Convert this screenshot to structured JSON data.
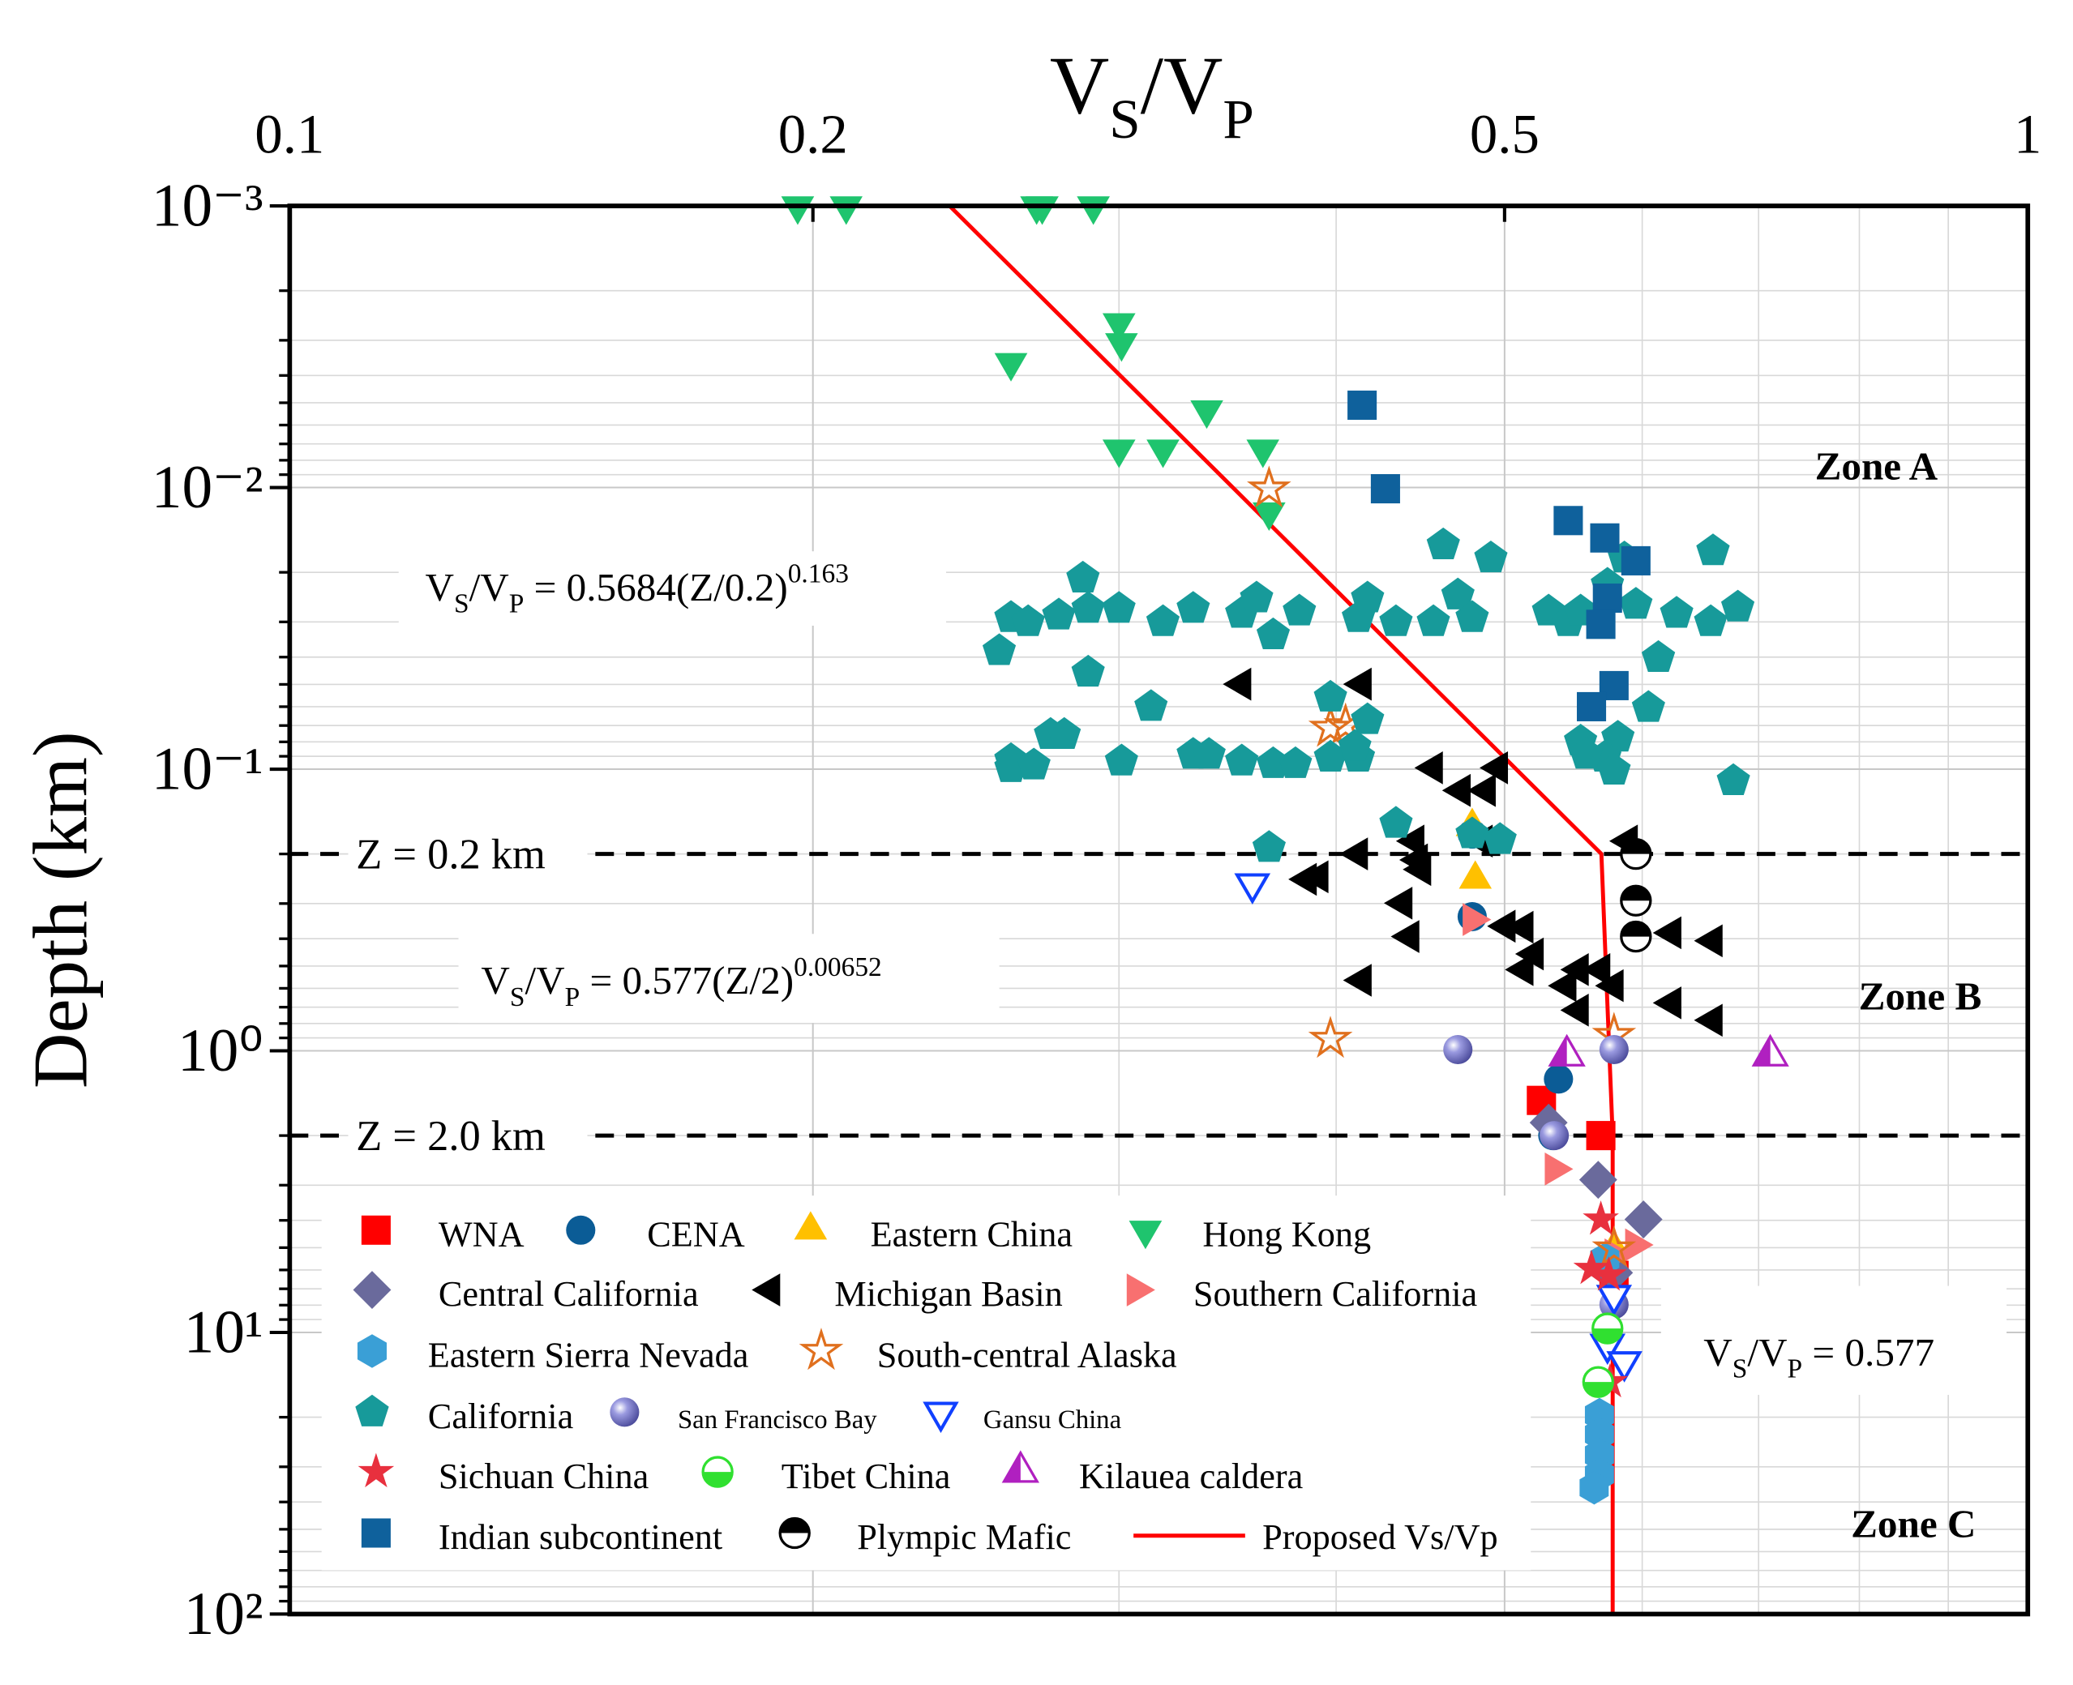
{
  "chart_data": {
    "type": "scatter",
    "x_label": [
      "V",
      "S",
      "/V",
      "P"
    ],
    "y_label": "Depth (km)",
    "xlim": [
      0.1,
      1
    ],
    "xticks": [
      0.1,
      0.2,
      0.5,
      1
    ],
    "x_log": true,
    "ylim": [
      0.001,
      100
    ],
    "y_log": true,
    "y_inverted": true,
    "yticks": [
      {
        "value": 0.001,
        "label": "10⁻³"
      },
      {
        "value": 0.01,
        "label": "10⁻²"
      },
      {
        "value": 0.1,
        "label": "10⁻¹"
      },
      {
        "value": 1,
        "label": "10⁰"
      },
      {
        "value": 10,
        "label": "10¹"
      },
      {
        "value": 100,
        "label": "10²"
      }
    ],
    "grid": true,
    "minor_grid": true,
    "legend": "lower left",
    "hlines": [
      {
        "y": 0.2,
        "label": "Z = 0.2 km"
      },
      {
        "y": 2,
        "label": "Z = 2.0 km"
      }
    ],
    "zones": [
      "Zone A",
      "Zone B",
      "Zone C"
    ],
    "equations": [
      [
        "V",
        "S",
        "/V",
        "P",
        " = 0.5684(Z/0.2)",
        "0.163"
      ],
      [
        "V",
        "S",
        "/V",
        "P",
        " = 0.577(Z/2)",
        "0.00652"
      ],
      [
        "V",
        "S",
        "/V",
        "P",
        " = 0.577"
      ]
    ],
    "series": [
      {
        "name": "WNA",
        "marker": "square",
        "color": "#ff0000",
        "x": [
          0.525,
          0.568,
          0.578
        ],
        "y": [
          1.5,
          2.0,
          6.27
        ]
      },
      {
        "name": "CENA",
        "marker": "circle",
        "color": "#0b5c96",
        "x": [
          0.479,
          0.479,
          0.537,
          0.533
        ],
        "y": [
          0.17,
          0.334,
          1.26,
          2.0
        ]
      },
      {
        "name": "Eastern China",
        "marker": "triangle-up",
        "color": "#ffc000",
        "x": [
          0.479,
          0.481,
          0.578
        ],
        "y": [
          0.16,
          0.246,
          5.04
        ]
      },
      {
        "name": "Hong Kong",
        "marker": "triangle-down",
        "color": "#1fc46e",
        "x": [
          0.196,
          0.209,
          0.269,
          0.271,
          0.29,
          0.3,
          0.301,
          0.26,
          0.337,
          0.3,
          0.318,
          0.363,
          0.366
        ],
        "y": [
          0.001,
          0.001,
          0.001,
          0.001,
          0.001,
          0.0026,
          0.00306,
          0.0036,
          0.0053,
          0.0073,
          0.0073,
          0.0073,
          0.0122
        ]
      },
      {
        "name": "Central California",
        "marker": "diamond",
        "color": "#6a6a9c",
        "x": [
          0.53,
          0.566,
          0.601,
          0.578
        ],
        "y": [
          1.8,
          2.87,
          3.97,
          6.14
        ]
      },
      {
        "name": "Michigan Basin",
        "marker": "triangle-left",
        "color": "#000000",
        "x": [
          0.353,
          0.414,
          0.455,
          0.472,
          0.496,
          0.488,
          0.486,
          0.589,
          0.444,
          0.412,
          0.391,
          0.385,
          0.446,
          0.448,
          0.437,
          0.441,
          0.501,
          0.513,
          0.52,
          0.513,
          0.552,
          0.568,
          0.543,
          0.578,
          0.624,
          0.659,
          0.624,
          0.659,
          0.414,
          0.552
        ],
        "y": [
          0.0499,
          0.0499,
          0.0989,
          0.119,
          0.0989,
          0.119,
          0.18,
          0.18,
          0.18,
          0.2,
          0.241,
          0.246,
          0.21,
          0.227,
          0.299,
          0.393,
          0.361,
          0.364,
          0.453,
          0.515,
          0.515,
          0.515,
          0.587,
          0.587,
          0.381,
          0.407,
          0.676,
          0.779,
          0.562,
          0.717
        ]
      },
      {
        "name": "Southern California",
        "marker": "triangle-right",
        "color": "#f87070",
        "x": [
          0.479,
          0.534,
          0.594,
          0.578
        ],
        "y": [
          0.342,
          2.63,
          4.89,
          5.3
        ]
      },
      {
        "name": "Eastern Sierra Nevada",
        "marker": "hexagon",
        "color": "#3a9fd6",
        "x": [
          0.571,
          0.567,
          0.567,
          0.567,
          0.567,
          0.563
        ],
        "y": [
          5.5,
          19.6,
          23,
          27.2,
          32,
          35.6
        ]
      },
      {
        "name": "South-central Alaska",
        "marker": "star-open",
        "color": "#e0701e",
        "x": [
          0.366,
          0.397,
          0.405,
          0.397,
          0.578,
          0.578
        ],
        "y": [
          0.0101,
          0.0714,
          0.07,
          0.908,
          0.88,
          5.04
        ]
      },
      {
        "name": "California",
        "marker": "pentagon",
        "color": "#179a9a",
        "x": [
          0.26,
          0.266,
          0.277,
          0.286,
          0.288,
          0.3,
          0.318,
          0.331,
          0.353,
          0.36,
          0.368,
          0.381,
          0.412,
          0.417,
          0.433,
          0.455,
          0.47,
          0.479,
          0.491,
          0.461,
          0.53,
          0.544,
          0.553,
          0.573,
          0.595,
          0.628,
          0.657,
          0.659,
          0.681,
          0.613,
          0.586,
          0.256,
          0.288,
          0.313,
          0.397,
          0.417,
          0.331,
          0.338,
          0.353,
          0.368,
          0.379,
          0.397,
          0.412,
          0.41,
          0.301,
          0.26,
          0.26,
          0.268,
          0.274,
          0.279,
          0.433,
          0.366,
          0.479,
          0.497,
          0.553,
          0.581,
          0.571,
          0.605,
          0.677,
          0.578,
          0.557
        ],
        "y": [
          0.029,
          0.03,
          0.0284,
          0.021,
          0.0269,
          0.0269,
          0.03,
          0.0269,
          0.028,
          0.0247,
          0.0334,
          0.0275,
          0.029,
          0.0247,
          0.03,
          0.03,
          0.0241,
          0.029,
          0.0178,
          0.016,
          0.0275,
          0.03,
          0.0275,
          0.0221,
          0.026,
          0.028,
          0.03,
          0.0168,
          0.0266,
          0.0402,
          0.0178,
          0.038,
          0.0453,
          0.06,
          0.0556,
          0.0668,
          0.0887,
          0.0887,
          0.0937,
          0.0957,
          0.0957,
          0.0908,
          0.0908,
          0.0832,
          0.0937,
          0.0927,
          0.0989,
          0.0968,
          0.0754,
          0.0754,
          0.156,
          0.19,
          0.17,
          0.178,
          0.0796,
          0.0771,
          0.0908,
          0.0605,
          0.11,
          0.101,
          0.0887
        ]
      },
      {
        "name": "San Francisco Bay",
        "marker": "sphere",
        "color": "#7070c8",
        "x": [
          0.47,
          0.578,
          0.534,
          0.578
        ],
        "y": [
          0.99,
          0.99,
          2.0,
          7.96
        ]
      },
      {
        "name": "Gansu China",
        "marker": "triangle-down-open",
        "color": "#1040ff",
        "x": [
          0.358,
          0.578,
          0.573,
          0.586
        ],
        "y": [
          0.255,
          7.38,
          11.0,
          12.7
        ]
      },
      {
        "name": "Sichuan China",
        "marker": "star",
        "color": "#e8303e",
        "x": [
          0.568,
          0.561,
          0.574,
          0.575
        ],
        "y": [
          3.97,
          5.94,
          6.27,
          15.0
        ]
      },
      {
        "name": "Tibet China",
        "marker": "half-circle",
        "color": "#30e030",
        "x": [
          0.573,
          0.566
        ],
        "y": [
          9.68,
          15.0
        ]
      },
      {
        "name": "Kilauea caldera",
        "marker": "half-triangle",
        "color": "#b020c0",
        "x": [
          0.543,
          0.711
        ],
        "y": [
          1.04,
          1.04
        ]
      },
      {
        "name": "Indian subcontinent",
        "marker": "square",
        "color": "#0f619c",
        "x": [
          0.414,
          0.427,
          0.544,
          0.571,
          0.595,
          0.573,
          0.568,
          0.578,
          0.561
        ],
        "y": [
          0.0051,
          0.0101,
          0.0131,
          0.0151,
          0.0182,
          0.0247,
          0.0306,
          0.0505,
          0.06
        ]
      },
      {
        "name": "Plympic Mafic",
        "marker": "half-circle-top",
        "color": "#000000",
        "x": [
          0.595,
          0.595,
          0.595
        ],
        "y": [
          0.2,
          0.293,
          0.393
        ]
      },
      {
        "name": "Proposed Vs/Vp",
        "type": "line",
        "color": "#ff0000",
        "x": [
          0.2397,
          0.5684,
          0.577,
          0.577
        ],
        "y": [
          0.001,
          0.2,
          2,
          100
        ]
      }
    ]
  }
}
